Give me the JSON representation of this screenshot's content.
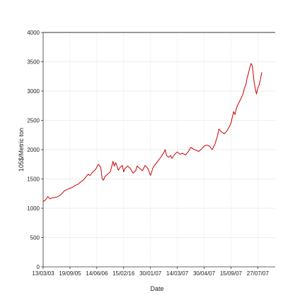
{
  "chart_data": {
    "type": "line",
    "xlabel": "Date",
    "ylabel": "105$/Metric ton",
    "ylim": [
      0,
      4000
    ],
    "yticks": [
      0,
      500,
      1000,
      1500,
      2000,
      2500,
      3000,
      3500,
      4000
    ],
    "xlim": [
      0,
      17.3
    ],
    "xticks": [
      {
        "x": 0,
        "label": "13/03/03"
      },
      {
        "x": 2,
        "label": "19/09/05"
      },
      {
        "x": 4,
        "label": "14/06/06"
      },
      {
        "x": 6,
        "label": "15/02/16"
      },
      {
        "x": 8,
        "label": "30/01/07"
      },
      {
        "x": 10,
        "label": "14/03/07"
      },
      {
        "x": 12,
        "label": "30/04/07"
      },
      {
        "x": 14,
        "label": "15/09/07"
      },
      {
        "x": 16,
        "label": "27/07/07"
      }
    ],
    "grid": true,
    "line_color": "#cc0000",
    "series": [
      {
        "values": [
          [
            0.0,
            1110
          ],
          [
            0.2,
            1150
          ],
          [
            0.35,
            1200
          ],
          [
            0.5,
            1160
          ],
          [
            0.7,
            1180
          ],
          [
            1.0,
            1190
          ],
          [
            1.2,
            1210
          ],
          [
            1.4,
            1250
          ],
          [
            1.6,
            1300
          ],
          [
            1.8,
            1320
          ],
          [
            2.0,
            1340
          ],
          [
            2.2,
            1360
          ],
          [
            2.4,
            1390
          ],
          [
            2.6,
            1410
          ],
          [
            2.8,
            1450
          ],
          [
            3.0,
            1480
          ],
          [
            3.2,
            1540
          ],
          [
            3.35,
            1580
          ],
          [
            3.5,
            1560
          ],
          [
            3.7,
            1620
          ],
          [
            3.9,
            1660
          ],
          [
            4.0,
            1700
          ],
          [
            4.1,
            1750
          ],
          [
            4.2,
            1730
          ],
          [
            4.3,
            1690
          ],
          [
            4.4,
            1500
          ],
          [
            4.5,
            1480
          ],
          [
            4.6,
            1540
          ],
          [
            4.8,
            1580
          ],
          [
            5.0,
            1620
          ],
          [
            5.1,
            1700
          ],
          [
            5.2,
            1800
          ],
          [
            5.3,
            1720
          ],
          [
            5.4,
            1780
          ],
          [
            5.5,
            1720
          ],
          [
            5.6,
            1650
          ],
          [
            5.75,
            1700
          ],
          [
            5.9,
            1730
          ],
          [
            6.0,
            1620
          ],
          [
            6.1,
            1680
          ],
          [
            6.3,
            1720
          ],
          [
            6.5,
            1680
          ],
          [
            6.7,
            1600
          ],
          [
            6.9,
            1640
          ],
          [
            7.0,
            1720
          ],
          [
            7.2,
            1680
          ],
          [
            7.4,
            1640
          ],
          [
            7.6,
            1730
          ],
          [
            7.8,
            1680
          ],
          [
            7.9,
            1620
          ],
          [
            8.0,
            1560
          ],
          [
            8.2,
            1700
          ],
          [
            8.4,
            1760
          ],
          [
            8.6,
            1820
          ],
          [
            8.8,
            1880
          ],
          [
            9.0,
            1950
          ],
          [
            9.1,
            2000
          ],
          [
            9.2,
            1900
          ],
          [
            9.35,
            1870
          ],
          [
            9.5,
            1900
          ],
          [
            9.6,
            1850
          ],
          [
            9.8,
            1920
          ],
          [
            10.0,
            1960
          ],
          [
            10.2,
            1920
          ],
          [
            10.4,
            1940
          ],
          [
            10.6,
            1910
          ],
          [
            10.8,
            1960
          ],
          [
            11.0,
            2040
          ],
          [
            11.2,
            2010
          ],
          [
            11.4,
            1990
          ],
          [
            11.6,
            1970
          ],
          [
            11.8,
            2010
          ],
          [
            12.0,
            2060
          ],
          [
            12.2,
            2080
          ],
          [
            12.4,
            2060
          ],
          [
            12.6,
            2000
          ],
          [
            12.8,
            2090
          ],
          [
            13.0,
            2240
          ],
          [
            13.1,
            2350
          ],
          [
            13.3,
            2300
          ],
          [
            13.5,
            2270
          ],
          [
            13.7,
            2320
          ],
          [
            13.9,
            2400
          ],
          [
            14.0,
            2450
          ],
          [
            14.1,
            2550
          ],
          [
            14.2,
            2650
          ],
          [
            14.3,
            2600
          ],
          [
            14.4,
            2700
          ],
          [
            14.5,
            2760
          ],
          [
            14.7,
            2850
          ],
          [
            14.9,
            2950
          ],
          [
            15.0,
            3050
          ],
          [
            15.1,
            3100
          ],
          [
            15.2,
            3220
          ],
          [
            15.3,
            3300
          ],
          [
            15.4,
            3400
          ],
          [
            15.5,
            3470
          ],
          [
            15.6,
            3430
          ],
          [
            15.7,
            3200
          ],
          [
            15.8,
            3050
          ],
          [
            15.9,
            2950
          ],
          [
            16.0,
            3050
          ],
          [
            16.1,
            3100
          ],
          [
            16.2,
            3200
          ],
          [
            16.3,
            3320
          ]
        ]
      }
    ]
  }
}
